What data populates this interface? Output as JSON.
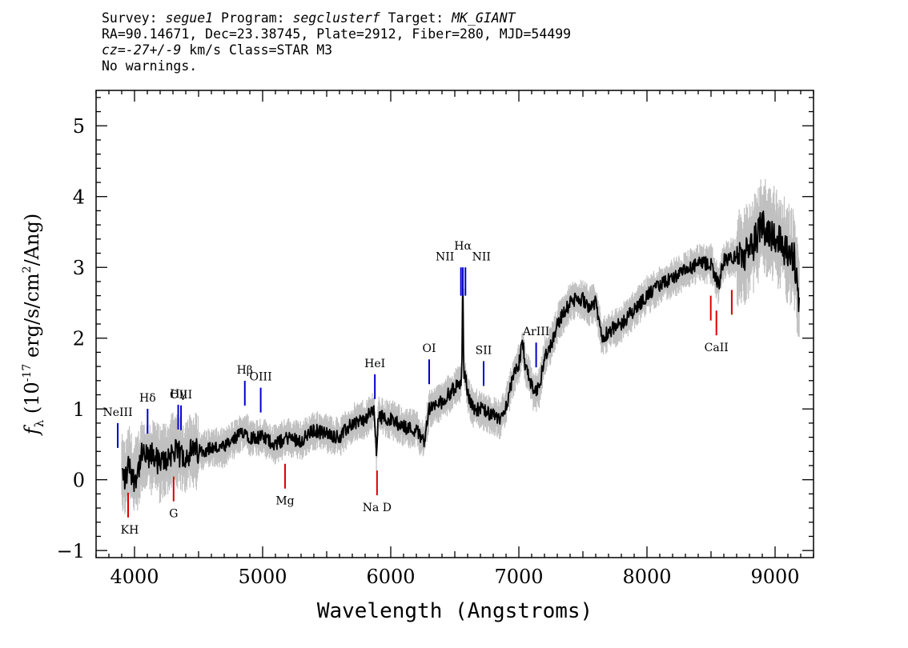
{
  "header": {
    "line1": {
      "survey_label": "Survey: ",
      "survey": "segue1",
      "program_label": " Program: ",
      "program": "segclusterf",
      "target_label": " Target: ",
      "target": "MK_GIANT"
    },
    "line2": "RA=90.14671, Dec=23.38745, Plate=2912, Fiber=280, MJD=54499",
    "line3": {
      "cz": "cz=-27+/-9",
      "rest": " km/s Class=STAR M3"
    },
    "line4": "No warnings."
  },
  "chart_data": {
    "type": "line",
    "xlabel": "Wavelength (Angstroms)",
    "ylabel": "f_λ (10^-17 erg/s/cm^2/Ang)",
    "xlim": [
      3700,
      9300
    ],
    "ylim": [
      -1.1,
      5.5
    ],
    "xticks": [
      4000,
      5000,
      6000,
      7000,
      8000,
      9000
    ],
    "yticks": [
      -1,
      0,
      1,
      2,
      3,
      4,
      5
    ],
    "grid": false,
    "colors": {
      "flux": "#000000",
      "noise": "#c0c0c0",
      "emission": "#0000cc",
      "absorption": "#dd0000"
    },
    "series": [
      {
        "role": "flux",
        "x": [
          3900,
          3930,
          3960,
          3990,
          4020,
          4060,
          4100,
          4150,
          4200,
          4250,
          4300,
          4350,
          4400,
          4450,
          4500,
          4600,
          4700,
          4800,
          4860,
          4900,
          5000,
          5100,
          5200,
          5300,
          5400,
          5500,
          5600,
          5700,
          5800,
          5870,
          5890,
          5900,
          6000,
          6100,
          6200,
          6260,
          6300,
          6350,
          6400,
          6450,
          6500,
          6540,
          6555,
          6562,
          6570,
          6585,
          6600,
          6650,
          6700,
          6750,
          6800,
          6850,
          6900,
          6950,
          7000,
          7030,
          7050,
          7080,
          7120,
          7160,
          7200,
          7250,
          7300,
          7400,
          7450,
          7500,
          7550,
          7600,
          7650,
          7700,
          7800,
          7900,
          8000,
          8100,
          8200,
          8300,
          8400,
          8500,
          8560,
          8600,
          8700,
          8800,
          8850,
          8900,
          8950,
          9000,
          9050,
          9100,
          9150,
          9190
        ],
        "y": [
          0.1,
          0.0,
          0.25,
          0.0,
          0.1,
          0.35,
          0.3,
          0.35,
          0.2,
          0.3,
          0.4,
          0.35,
          0.35,
          0.4,
          0.4,
          0.45,
          0.45,
          0.6,
          0.7,
          0.6,
          0.6,
          0.5,
          0.6,
          0.55,
          0.7,
          0.65,
          0.6,
          0.8,
          0.85,
          1.0,
          0.3,
          0.9,
          0.85,
          0.75,
          0.7,
          0.55,
          1.0,
          1.05,
          1.1,
          1.2,
          1.3,
          1.35,
          1.45,
          3.1,
          1.5,
          1.45,
          1.2,
          1.0,
          1.0,
          0.95,
          0.9,
          0.85,
          1.05,
          1.4,
          1.65,
          1.95,
          1.6,
          1.45,
          1.2,
          1.3,
          1.75,
          1.9,
          2.2,
          2.5,
          2.55,
          2.55,
          2.45,
          2.5,
          2.0,
          2.1,
          2.2,
          2.4,
          2.6,
          2.75,
          2.85,
          2.95,
          3.05,
          3.05,
          2.75,
          3.1,
          3.15,
          3.2,
          3.4,
          3.6,
          3.5,
          3.45,
          3.35,
          3.2,
          3.1,
          2.5
        ]
      }
    ],
    "lines": [
      {
        "label": "NeIII",
        "x": 3869,
        "color": "blue"
      },
      {
        "label": "KH",
        "x": 3950,
        "color": "red"
      },
      {
        "label": "Hδ",
        "x": 4102,
        "color": "blue"
      },
      {
        "label": "G",
        "x": 4305,
        "color": "red"
      },
      {
        "label": "Hγ",
        "x": 4341,
        "color": "blue"
      },
      {
        "label": "OIII",
        "x": 4363,
        "color": "blue"
      },
      {
        "label": "Hβ",
        "x": 4861,
        "color": "blue"
      },
      {
        "label": "OIII",
        "x": 4985,
        "color": "blue"
      },
      {
        "label": "Mg",
        "x": 5175,
        "color": "red"
      },
      {
        "label": "HeI",
        "x": 5876,
        "color": "blue"
      },
      {
        "label": "Na D",
        "x": 5893,
        "color": "red"
      },
      {
        "label": "OI",
        "x": 6300,
        "color": "blue"
      },
      {
        "label": "NII",
        "x": 6548,
        "color": "blue"
      },
      {
        "label": "Hα",
        "x": 6563,
        "color": "blue"
      },
      {
        "label": "NII",
        "x": 6583,
        "color": "blue"
      },
      {
        "label": "SII",
        "x": 6725,
        "color": "blue"
      },
      {
        "label": "ArIII",
        "x": 7135,
        "color": "blue"
      },
      {
        "label": "CaII",
        "x": 8542,
        "color": "red"
      }
    ]
  }
}
